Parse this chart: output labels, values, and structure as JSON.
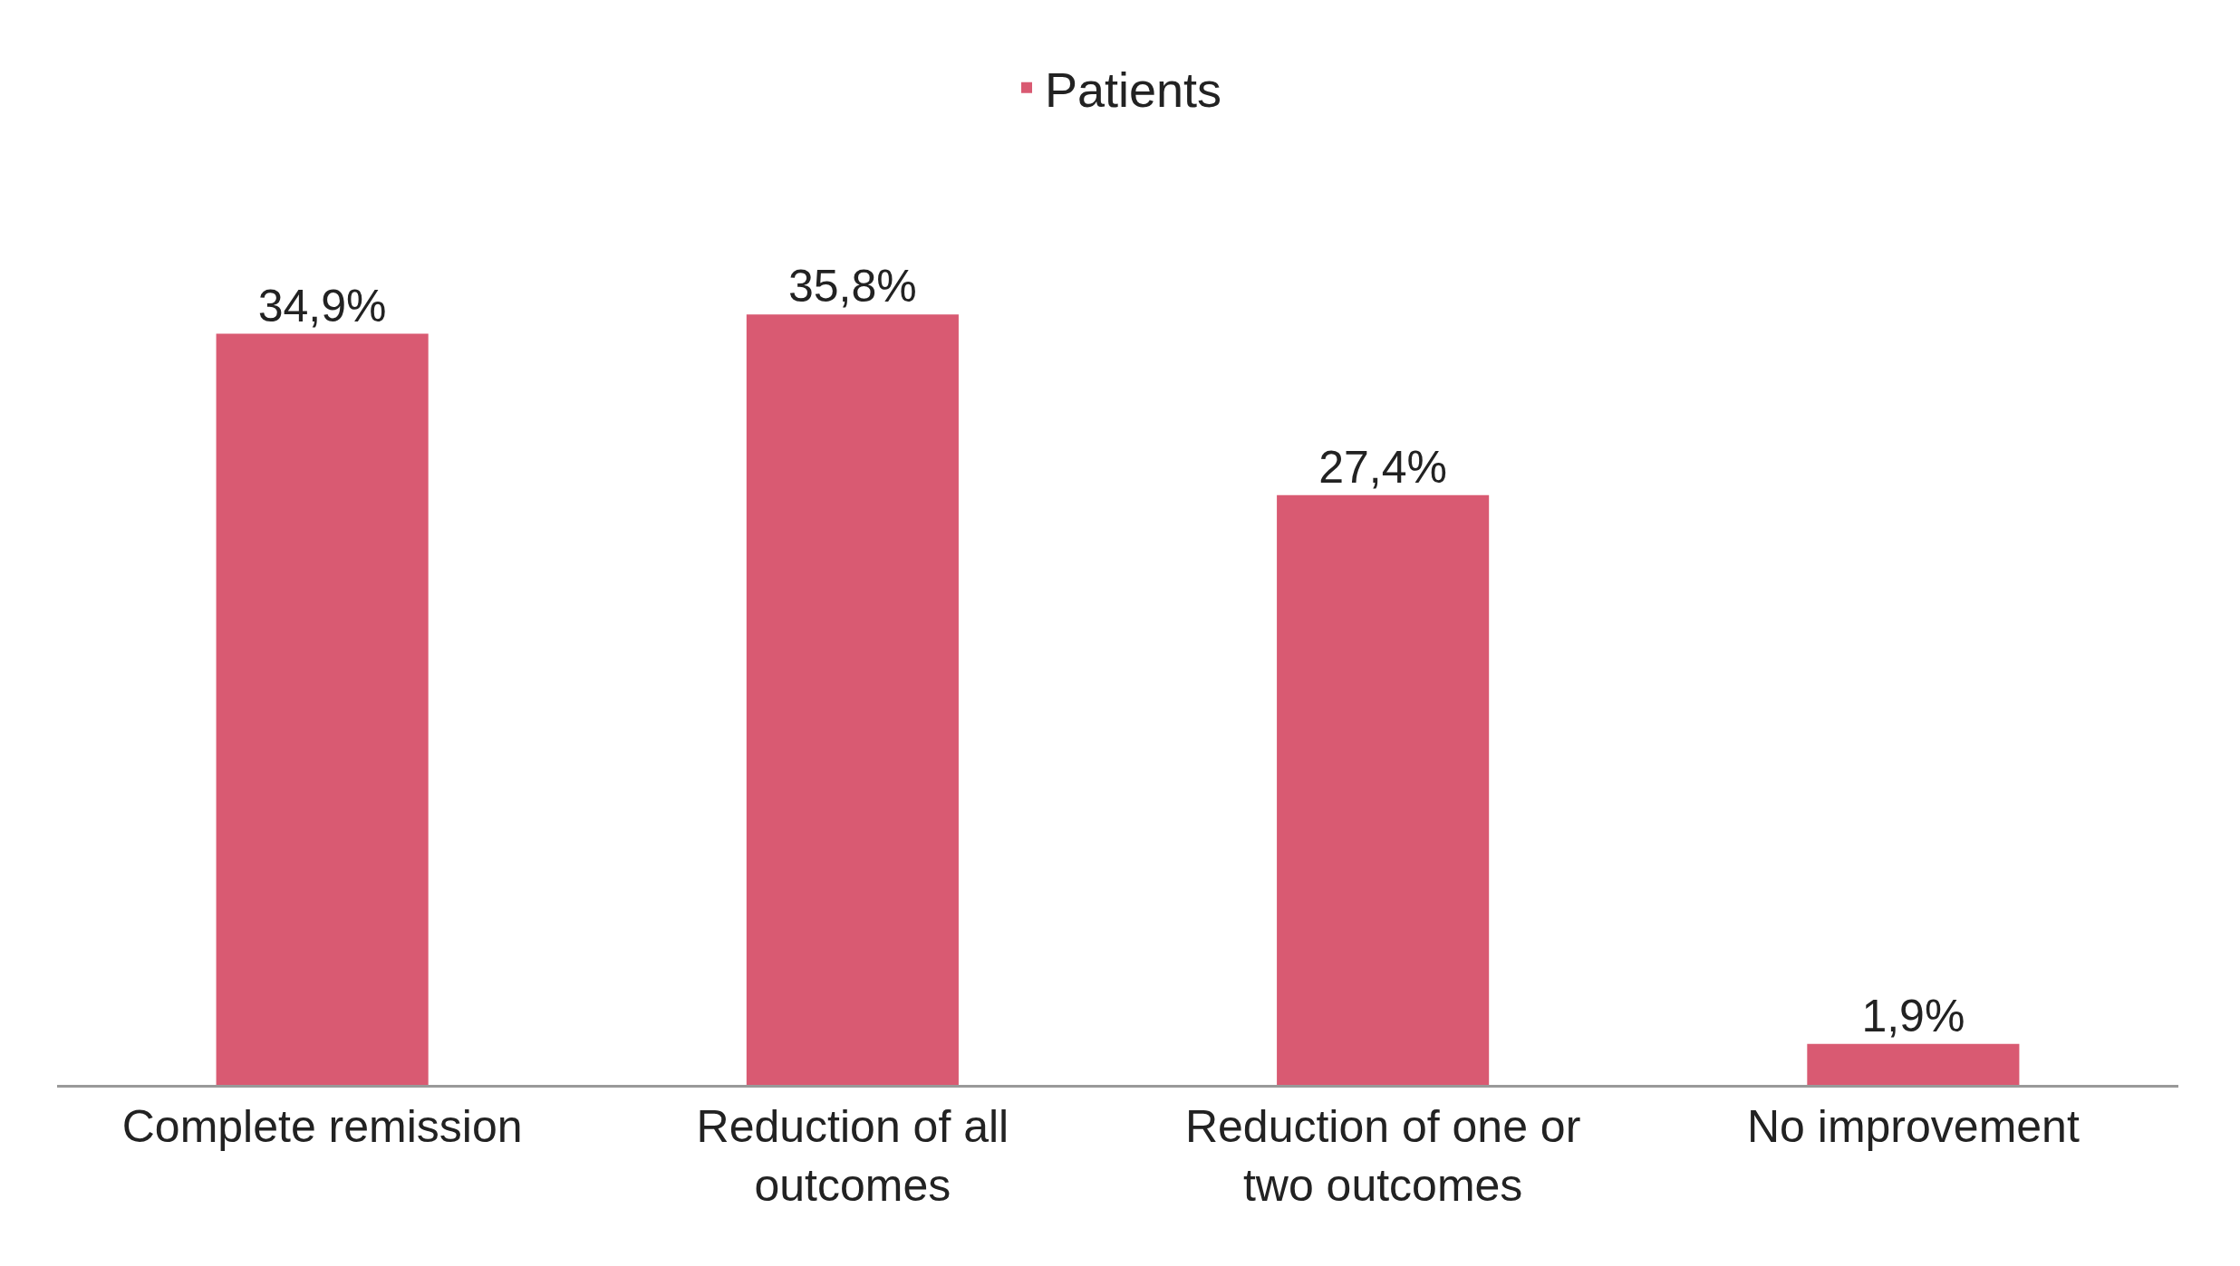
{
  "chart_data": {
    "type": "bar",
    "categories": [
      "Complete remission",
      "Reduction of all outcomes",
      "Reduction of one or two outcomes",
      "No improvement"
    ],
    "series": [
      {
        "name": "Patients",
        "color": "#d95a72",
        "values": [
          34.9,
          35.8,
          27.4,
          1.9
        ],
        "value_labels": [
          "34,9%",
          "35,8%",
          "27,4%",
          "1,9%"
        ]
      }
    ],
    "legend": "top",
    "grid": false
  }
}
